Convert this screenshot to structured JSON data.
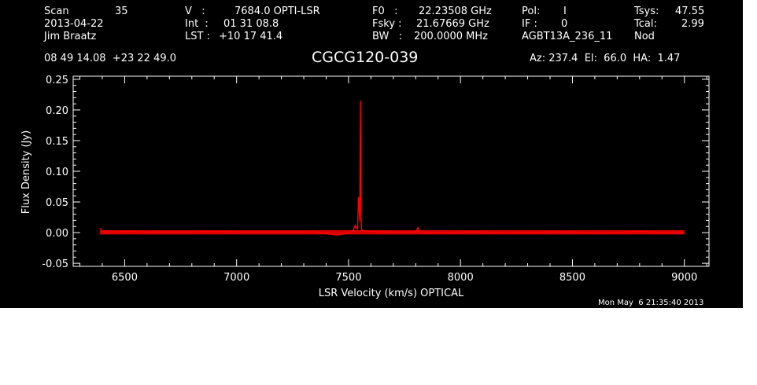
{
  "header": {
    "row1": {
      "scan_label": "Scan",
      "scan_value": "35",
      "v_label": "V   :",
      "v_value": "7684.0 OPTI-LSR",
      "f0_label": "F0   :",
      "f0_value": "22.23508 GHz",
      "pol_label": "Pol:",
      "pol_value": "I",
      "tsys_label": "Tsys:",
      "tsys_value": "47.55"
    },
    "row2": {
      "date": "2013-04-22",
      "int_label": "Int  :",
      "int_value": "01 31 08.8",
      "fsky_label": "Fsky :",
      "fsky_value": "21.67669 GHz",
      "if_label": "IF :",
      "if_value": "0",
      "tcal_label": "Tcal:",
      "tcal_value": "2.99"
    },
    "row3": {
      "observer": "Jim Braatz",
      "lst_label": "LST :",
      "lst_value": "+10 17 41.4",
      "bw_label": "BW   :",
      "bw_value": "200.0000 MHz",
      "project": "AGBT13A_236_11",
      "mode": "Nod"
    },
    "coords": "08 49 14.08  +23 22 49.0",
    "source": "CGCG120-039",
    "az_el_ha": "Az: 237.4  El:  66.0  HA:  1.47",
    "timestamp": "Mon May  6 21:35:40 2013"
  },
  "chart_data": {
    "type": "line",
    "xlabel": "LSR Velocity (km/s) OPTICAL",
    "ylabel": "Flux Density (Jy)",
    "xlim": [
      6270,
      9110
    ],
    "ylim": [
      -0.055,
      0.255
    ],
    "x_ticks": [
      6500,
      7000,
      7500,
      8000,
      8500,
      9000
    ],
    "x_tick_labels": [
      "6500",
      "7000",
      "7500",
      "8000",
      "8500",
      "9000"
    ],
    "y_ticks": [
      -0.05,
      0.0,
      0.05,
      0.1,
      0.15,
      0.2,
      0.25
    ],
    "y_tick_labels": [
      "-0.05",
      "0.00",
      "0.05",
      "0.10",
      "0.15",
      "0.20",
      "0.25"
    ],
    "series": [
      {
        "color": "#ff0000",
        "x": [
          6390,
          6400,
          6450,
          6500,
          6600,
          6700,
          6800,
          6900,
          7000,
          7100,
          7200,
          7300,
          7350,
          7400,
          7450,
          7480,
          7500,
          7520,
          7530,
          7540,
          7545,
          7550,
          7553,
          7556,
          7558,
          7561,
          7565,
          7570,
          7580,
          7600,
          7650,
          7700,
          7800,
          7810,
          7815,
          7820,
          7900,
          8000,
          8100,
          8200,
          8300,
          8400,
          8500,
          8600,
          8700,
          8800,
          8900,
          9000
        ],
        "y": [
          0.007,
          0.002,
          0.001,
          0.002,
          0.001,
          0.001,
          0.001,
          0.002,
          0.001,
          0.001,
          0.001,
          0.001,
          0.001,
          -0.002,
          -0.004,
          -0.002,
          0.0,
          0.003,
          0.012,
          0.005,
          0.058,
          0.018,
          0.215,
          0.02,
          0.005,
          0.003,
          0.004,
          0.002,
          0.003,
          0.002,
          0.001,
          0.001,
          0.001,
          0.008,
          0.002,
          0.001,
          0.0,
          0.001,
          0.001,
          0.0,
          0.0,
          0.001,
          0.001,
          -0.001,
          0.0,
          0.002,
          0.0,
          0.0
        ]
      }
    ],
    "grid": false,
    "legend": "none"
  }
}
